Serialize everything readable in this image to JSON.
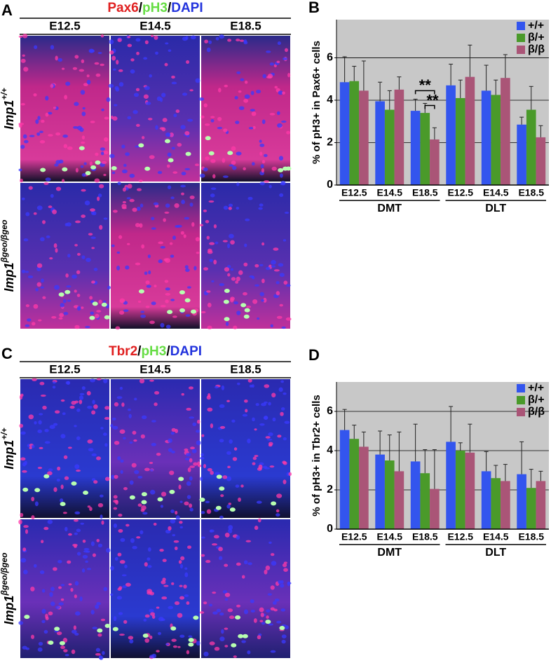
{
  "image_panels": [
    {
      "label": "A",
      "stain": [
        {
          "text": "Pax6",
          "color": "#e02020"
        },
        {
          "text": "/",
          "color": "#000000"
        },
        {
          "text": "pH3",
          "color": "#66dd44"
        },
        {
          "text": "/",
          "color": "#000000"
        },
        {
          "text": "DAPI",
          "color": "#2233dd"
        }
      ],
      "columns": [
        "E12.5",
        "E14.5",
        "E18.5"
      ],
      "rows": [
        {
          "base": "Imp1",
          "sup": "+/+"
        },
        {
          "base": "Imp1",
          "sup": "βgeo/βgeo"
        }
      ]
    },
    {
      "label": "C",
      "stain": [
        {
          "text": "Tbr2",
          "color": "#e02020"
        },
        {
          "text": "/",
          "color": "#000000"
        },
        {
          "text": "pH3",
          "color": "#66dd44"
        },
        {
          "text": "/",
          "color": "#000000"
        },
        {
          "text": "DAPI",
          "color": "#2233dd"
        }
      ],
      "columns": [
        "E12.5",
        "E14.5",
        "E18.5"
      ],
      "rows": [
        {
          "base": "Imp1",
          "sup": "+/+"
        },
        {
          "base": "Imp1",
          "sup": "βgeo/βgeo"
        }
      ]
    }
  ],
  "chart_data": [
    {
      "type": "bar",
      "panel": "B",
      "ylabel": "% of pH3+ in Pax6+ cells",
      "categories": [
        "E12.5",
        "E14.5",
        "E18.5",
        "E12.5",
        "E14.5",
        "E18.5"
      ],
      "groups": [
        "DMT",
        "DLT"
      ],
      "ylim": [
        0,
        7.8
      ],
      "yticks": [
        0,
        2,
        4,
        6
      ],
      "grid": true,
      "legend": "upper right",
      "series": [
        {
          "name": "+/+",
          "color": "#3355ee",
          "values": [
            4.85,
            3.95,
            3.5,
            4.7,
            4.45,
            2.85
          ],
          "errors": [
            1.2,
            0.9,
            0.55,
            1.0,
            1.2,
            0.35
          ]
        },
        {
          "name": "β/+",
          "color": "#4a9a2a",
          "values": [
            4.9,
            3.55,
            3.4,
            4.1,
            4.25,
            3.55
          ],
          "errors": [
            0.7,
            0.9,
            0.45,
            0.85,
            0.7,
            1.1
          ]
        },
        {
          "name": "β/β",
          "color": "#aa5577",
          "values": [
            4.45,
            4.5,
            2.15,
            5.1,
            5.05,
            2.25
          ],
          "errors": [
            1.4,
            0.6,
            0.55,
            1.5,
            1.1,
            0.55
          ]
        }
      ],
      "annotations": [
        "**",
        "**"
      ]
    },
    {
      "type": "bar",
      "panel": "D",
      "ylabel": "% of pH3+ in Tbr2+ cells",
      "categories": [
        "E12.5",
        "E14.5",
        "E18.5",
        "E12.5",
        "E14.5",
        "E18.5"
      ],
      "groups": [
        "DMT",
        "DLT"
      ],
      "ylim": [
        0,
        7.5
      ],
      "yticks": [
        0,
        2,
        4,
        6
      ],
      "grid": true,
      "legend": "upper right",
      "series": [
        {
          "name": "+/+",
          "color": "#3355ee",
          "values": [
            5.05,
            3.8,
            3.45,
            4.45,
            2.95,
            2.8
          ],
          "errors": [
            1.05,
            1.2,
            1.9,
            1.8,
            1.0,
            1.65
          ]
        },
        {
          "name": "β/+",
          "color": "#4a9a2a",
          "values": [
            4.6,
            3.5,
            2.85,
            4.0,
            2.6,
            2.1
          ],
          "errors": [
            0.7,
            1.3,
            1.2,
            0.4,
            0.65,
            0.95
          ]
        },
        {
          "name": "β/β",
          "color": "#aa5577",
          "values": [
            4.2,
            2.95,
            2.05,
            3.9,
            2.45,
            2.45
          ],
          "errors": [
            0.75,
            2.0,
            2.0,
            1.45,
            0.85,
            0.5
          ]
        }
      ]
    }
  ]
}
